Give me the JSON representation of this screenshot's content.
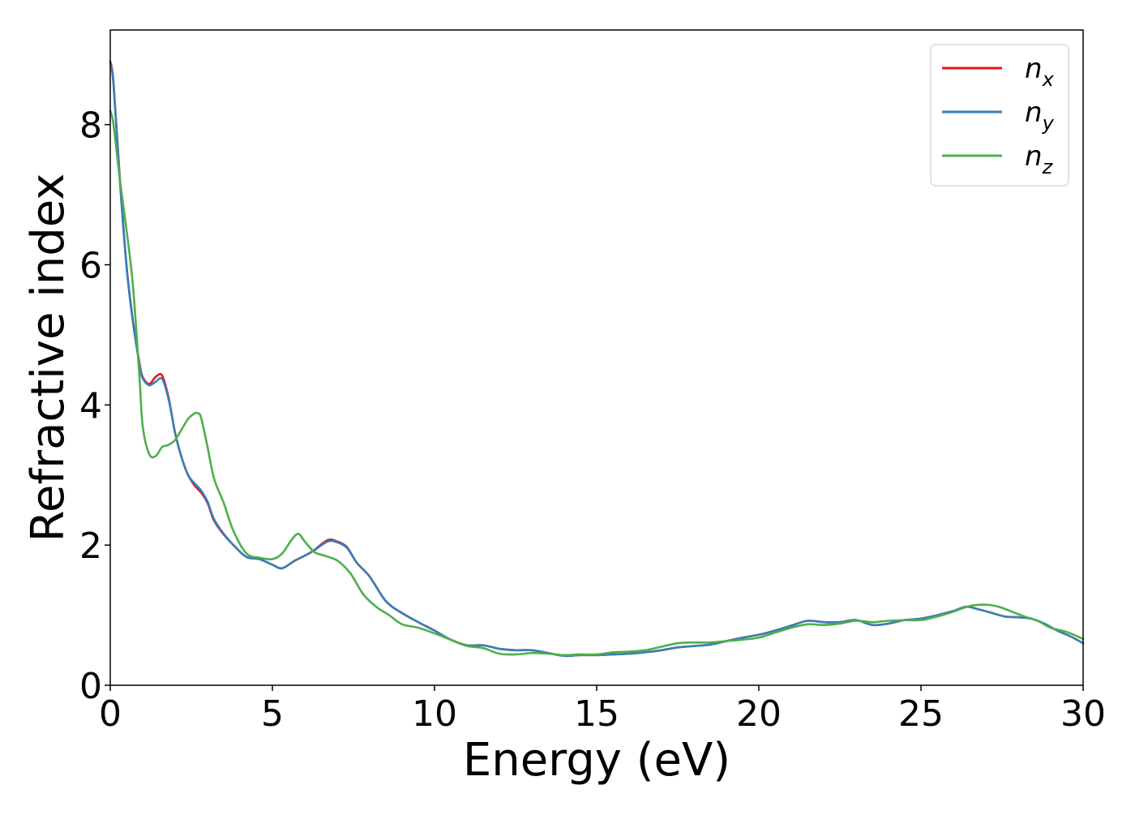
{
  "chart_data": {
    "type": "line",
    "title": "",
    "xlabel": "Energy (eV)",
    "ylabel": "Refractive index",
    "xlim": [
      0,
      30
    ],
    "ylim": [
      0,
      9.35
    ],
    "xticks": [
      0,
      5,
      10,
      15,
      20,
      25,
      30
    ],
    "yticks": [
      0,
      2,
      4,
      6,
      8
    ],
    "grid": false,
    "legend_position": "top-right",
    "series": [
      {
        "name": "n",
        "subscript": "x",
        "color": "#e41a1c",
        "x": [
          0.0,
          0.1,
          0.3,
          0.5,
          0.7,
          0.9,
          1.0,
          1.2,
          1.4,
          1.6,
          1.8,
          2.0,
          2.2,
          2.4,
          2.6,
          2.8,
          3.0,
          3.2,
          3.5,
          3.8,
          4.2,
          4.6,
          5.0,
          5.3,
          5.7,
          6.2,
          6.7,
          7.0,
          7.3,
          7.6,
          8.0,
          8.5,
          9.0,
          9.5,
          10.0,
          10.5,
          11.0,
          11.5,
          12.0,
          12.5,
          13.0,
          13.5,
          14.0,
          14.5,
          15.0,
          15.5,
          16.0,
          16.5,
          17.0,
          17.5,
          18.0,
          18.5,
          19.0,
          19.5,
          20.0,
          20.5,
          21.0,
          21.5,
          22.0,
          22.5,
          23.0,
          23.5,
          24.0,
          24.5,
          25.0,
          25.5,
          26.0,
          26.4,
          26.8,
          27.2,
          27.6,
          28.0,
          28.4,
          28.8,
          29.2,
          29.6,
          30.0
        ],
        "y": [
          8.9,
          8.6,
          7.2,
          6.0,
          5.2,
          4.6,
          4.4,
          4.3,
          4.4,
          4.42,
          4.1,
          3.6,
          3.25,
          3.0,
          2.85,
          2.75,
          2.6,
          2.35,
          2.15,
          2.0,
          1.83,
          1.8,
          1.72,
          1.67,
          1.78,
          1.9,
          2.07,
          2.05,
          1.97,
          1.75,
          1.55,
          1.2,
          1.03,
          0.9,
          0.78,
          0.65,
          0.57,
          0.57,
          0.52,
          0.5,
          0.5,
          0.46,
          0.42,
          0.43,
          0.43,
          0.44,
          0.45,
          0.47,
          0.5,
          0.54,
          0.56,
          0.58,
          0.63,
          0.68,
          0.72,
          0.78,
          0.85,
          0.92,
          0.9,
          0.9,
          0.93,
          0.86,
          0.88,
          0.93,
          0.95,
          1.0,
          1.06,
          1.12,
          1.08,
          1.03,
          0.98,
          0.97,
          0.95,
          0.88,
          0.78,
          0.7,
          0.6
        ]
      },
      {
        "name": "n",
        "subscript": "y",
        "color": "#377eb8",
        "x": [
          0.0,
          0.1,
          0.3,
          0.5,
          0.7,
          0.9,
          1.0,
          1.2,
          1.4,
          1.6,
          1.8,
          2.0,
          2.2,
          2.4,
          2.6,
          2.8,
          3.0,
          3.2,
          3.5,
          3.8,
          4.2,
          4.6,
          5.0,
          5.3,
          5.7,
          6.2,
          6.7,
          7.0,
          7.3,
          7.6,
          8.0,
          8.5,
          9.0,
          9.5,
          10.0,
          10.5,
          11.0,
          11.5,
          12.0,
          12.5,
          13.0,
          13.5,
          14.0,
          14.5,
          15.0,
          15.5,
          16.0,
          16.5,
          17.0,
          17.5,
          18.0,
          18.5,
          19.0,
          19.5,
          20.0,
          20.5,
          21.0,
          21.5,
          22.0,
          22.5,
          23.0,
          23.5,
          24.0,
          24.5,
          25.0,
          25.5,
          26.0,
          26.4,
          26.8,
          27.2,
          27.6,
          28.0,
          28.4,
          28.8,
          29.2,
          29.6,
          30.0
        ],
        "y": [
          8.88,
          8.58,
          7.18,
          5.98,
          5.18,
          4.58,
          4.38,
          4.28,
          4.33,
          4.37,
          4.08,
          3.6,
          3.25,
          3.0,
          2.88,
          2.78,
          2.62,
          2.37,
          2.16,
          2.0,
          1.83,
          1.8,
          1.72,
          1.67,
          1.78,
          1.9,
          2.05,
          2.04,
          1.96,
          1.75,
          1.55,
          1.2,
          1.03,
          0.9,
          0.78,
          0.65,
          0.57,
          0.57,
          0.52,
          0.5,
          0.5,
          0.46,
          0.42,
          0.43,
          0.43,
          0.44,
          0.45,
          0.47,
          0.5,
          0.54,
          0.56,
          0.58,
          0.63,
          0.68,
          0.72,
          0.78,
          0.85,
          0.92,
          0.9,
          0.9,
          0.93,
          0.86,
          0.88,
          0.93,
          0.95,
          1.0,
          1.06,
          1.12,
          1.08,
          1.03,
          0.98,
          0.97,
          0.95,
          0.88,
          0.78,
          0.7,
          0.6
        ]
      },
      {
        "name": "n",
        "subscript": "z",
        "color": "#4daf4a",
        "x": [
          0.0,
          0.1,
          0.3,
          0.5,
          0.7,
          0.9,
          1.0,
          1.2,
          1.4,
          1.6,
          1.8,
          2.0,
          2.2,
          2.4,
          2.6,
          2.7,
          2.8,
          3.0,
          3.2,
          3.5,
          3.8,
          4.2,
          4.6,
          5.0,
          5.3,
          5.6,
          5.8,
          6.0,
          6.3,
          6.6,
          7.0,
          7.4,
          7.8,
          8.2,
          8.6,
          9.0,
          9.5,
          10.0,
          10.5,
          11.0,
          11.5,
          12.0,
          12.5,
          13.0,
          13.5,
          14.0,
          14.5,
          15.0,
          15.5,
          16.0,
          16.5,
          17.0,
          17.5,
          18.0,
          18.5,
          19.0,
          19.5,
          20.0,
          20.5,
          21.0,
          21.5,
          22.0,
          22.5,
          23.0,
          23.5,
          24.0,
          24.5,
          25.0,
          25.5,
          26.0,
          26.5,
          27.0,
          27.4,
          27.8,
          28.2,
          28.6,
          29.0,
          29.5,
          30.0
        ],
        "y": [
          8.2,
          8.0,
          7.2,
          6.5,
          5.7,
          4.4,
          3.7,
          3.3,
          3.27,
          3.4,
          3.43,
          3.5,
          3.65,
          3.8,
          3.88,
          3.88,
          3.82,
          3.4,
          2.95,
          2.6,
          2.2,
          1.88,
          1.82,
          1.8,
          1.88,
          2.08,
          2.16,
          2.05,
          1.9,
          1.85,
          1.78,
          1.6,
          1.3,
          1.12,
          1.0,
          0.87,
          0.82,
          0.74,
          0.65,
          0.56,
          0.53,
          0.45,
          0.44,
          0.46,
          0.45,
          0.43,
          0.44,
          0.44,
          0.47,
          0.48,
          0.5,
          0.55,
          0.6,
          0.61,
          0.61,
          0.63,
          0.65,
          0.68,
          0.75,
          0.82,
          0.87,
          0.86,
          0.88,
          0.92,
          0.9,
          0.92,
          0.93,
          0.93,
          0.98,
          1.05,
          1.13,
          1.15,
          1.12,
          1.05,
          0.98,
          0.92,
          0.82,
          0.76,
          0.66
        ]
      }
    ]
  }
}
